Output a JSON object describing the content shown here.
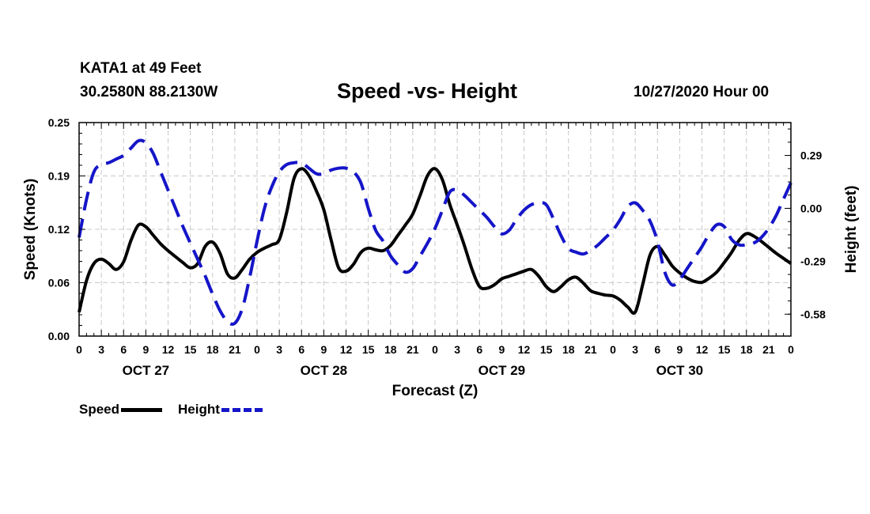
{
  "header": {
    "station": "KATA1 at 49 Feet",
    "coords": "30.2580N 88.2130W",
    "title": "Speed -vs- Height",
    "datetime": "10/27/2020 Hour 00"
  },
  "legend": {
    "speed_label": "Speed",
    "height_label": "Height"
  },
  "colors": {
    "speed": "#000000",
    "height": "#1515c8",
    "grid": "#c8c8c8"
  },
  "chart_data": {
    "type": "line",
    "title": "Speed -vs- Height",
    "xlabel": "Forecast (Z)",
    "ylabel": "Speed (Knots)",
    "y2label": "Height (feet)",
    "xlim": [
      0,
      96
    ],
    "ylim": [
      0,
      0.25
    ],
    "y2lim": [
      -0.7,
      0.47
    ],
    "yticks": [
      {
        "value": 0,
        "label": "0.00"
      },
      {
        "value": 0.0625,
        "label": "0.06"
      },
      {
        "value": 0.125,
        "label": "0.12"
      },
      {
        "value": 0.1875,
        "label": "0.19"
      },
      {
        "value": 0.25,
        "label": "0.25"
      }
    ],
    "y2ticks": [
      {
        "value": -0.58,
        "label": "-0.58"
      },
      {
        "value": -0.29,
        "label": "-0.29"
      },
      {
        "value": 0,
        "label": "0.00"
      },
      {
        "value": 0.29,
        "label": "0.29"
      }
    ],
    "xticks": [
      {
        "value": 0,
        "label": "0"
      },
      {
        "value": 3,
        "label": "3"
      },
      {
        "value": 6,
        "label": "6"
      },
      {
        "value": 9,
        "label": "9"
      },
      {
        "value": 12,
        "label": "12"
      },
      {
        "value": 15,
        "label": "15"
      },
      {
        "value": 18,
        "label": "18"
      },
      {
        "value": 21,
        "label": "21"
      },
      {
        "value": 24,
        "label": "0"
      },
      {
        "value": 27,
        "label": "3"
      },
      {
        "value": 30,
        "label": "6"
      },
      {
        "value": 33,
        "label": "9"
      },
      {
        "value": 36,
        "label": "12"
      },
      {
        "value": 39,
        "label": "15"
      },
      {
        "value": 42,
        "label": "18"
      },
      {
        "value": 45,
        "label": "21"
      },
      {
        "value": 48,
        "label": "0"
      },
      {
        "value": 51,
        "label": "3"
      },
      {
        "value": 54,
        "label": "6"
      },
      {
        "value": 57,
        "label": "9"
      },
      {
        "value": 60,
        "label": "12"
      },
      {
        "value": 63,
        "label": "15"
      },
      {
        "value": 66,
        "label": "18"
      },
      {
        "value": 69,
        "label": "21"
      },
      {
        "value": 72,
        "label": "0"
      },
      {
        "value": 75,
        "label": "3"
      },
      {
        "value": 78,
        "label": "6"
      },
      {
        "value": 81,
        "label": "9"
      },
      {
        "value": 84,
        "label": "12"
      },
      {
        "value": 87,
        "label": "15"
      },
      {
        "value": 90,
        "label": "18"
      },
      {
        "value": 93,
        "label": "21"
      },
      {
        "value": 96,
        "label": "0"
      }
    ],
    "day_labels": [
      {
        "value": 9,
        "label": "OCT 27"
      },
      {
        "value": 33,
        "label": "OCT 28"
      },
      {
        "value": 57,
        "label": "OCT 29"
      },
      {
        "value": 81,
        "label": "OCT 30"
      }
    ],
    "series": [
      {
        "name": "Speed",
        "axis": "left",
        "style": "solid",
        "x": [
          0,
          1,
          2,
          3,
          4,
          5,
          6,
          7,
          8,
          9,
          10,
          11,
          12,
          13,
          14,
          15,
          16,
          17,
          18,
          19,
          20,
          21,
          22,
          23,
          24,
          25,
          26,
          27,
          28,
          29,
          30,
          31,
          32,
          33,
          34,
          35,
          36,
          37,
          38,
          39,
          40,
          41,
          42,
          43,
          44,
          45,
          46,
          47,
          48,
          49,
          50,
          51,
          52,
          53,
          54,
          55,
          56,
          57,
          58,
          59,
          60,
          61,
          62,
          63,
          64,
          65,
          66,
          67,
          68,
          69,
          70,
          71,
          72,
          73,
          74,
          75,
          76,
          77,
          78,
          79,
          80,
          81,
          82,
          83,
          84,
          85,
          86,
          87,
          88,
          89,
          90,
          91,
          92,
          93,
          94,
          95,
          96
        ],
        "values": [
          0.028,
          0.065,
          0.085,
          0.09,
          0.085,
          0.078,
          0.087,
          0.112,
          0.13,
          0.128,
          0.118,
          0.108,
          0.1,
          0.093,
          0.086,
          0.08,
          0.085,
          0.105,
          0.11,
          0.097,
          0.073,
          0.068,
          0.078,
          0.09,
          0.098,
          0.103,
          0.107,
          0.113,
          0.145,
          0.185,
          0.196,
          0.188,
          0.17,
          0.148,
          0.112,
          0.08,
          0.076,
          0.084,
          0.098,
          0.103,
          0.101,
          0.1,
          0.106,
          0.118,
          0.13,
          0.143,
          0.165,
          0.188,
          0.196,
          0.183,
          0.154,
          0.13,
          0.105,
          0.078,
          0.058,
          0.056,
          0.06,
          0.067,
          0.07,
          0.073,
          0.076,
          0.078,
          0.07,
          0.058,
          0.052,
          0.058,
          0.066,
          0.069,
          0.062,
          0.053,
          0.05,
          0.048,
          0.047,
          0.042,
          0.034,
          0.028,
          0.06,
          0.095,
          0.105,
          0.095,
          0.082,
          0.074,
          0.068,
          0.064,
          0.063,
          0.068,
          0.075,
          0.086,
          0.098,
          0.112,
          0.12,
          0.117,
          0.111,
          0.104,
          0.097,
          0.091,
          0.085
        ]
      },
      {
        "name": "Height",
        "axis": "right",
        "style": "dashed",
        "x": [
          0,
          1,
          2,
          3,
          4,
          5,
          6,
          7,
          8,
          9,
          10,
          11,
          12,
          13,
          14,
          15,
          16,
          17,
          18,
          19,
          20,
          21,
          22,
          23,
          24,
          25,
          26,
          27,
          28,
          29,
          30,
          31,
          32,
          33,
          34,
          35,
          36,
          37,
          38,
          39,
          40,
          41,
          42,
          43,
          44,
          45,
          46,
          47,
          48,
          49,
          50,
          51,
          52,
          53,
          54,
          55,
          56,
          57,
          58,
          59,
          60,
          61,
          62,
          63,
          64,
          65,
          66,
          67,
          68,
          69,
          70,
          71,
          72,
          73,
          74,
          75,
          76,
          77,
          78,
          79,
          80,
          81,
          82,
          83,
          84,
          85,
          86,
          87,
          88,
          89,
          90,
          91,
          92,
          93,
          94,
          95,
          96
        ],
        "values": [
          -0.16,
          0.05,
          0.2,
          0.24,
          0.25,
          0.27,
          0.29,
          0.33,
          0.37,
          0.36,
          0.3,
          0.2,
          0.1,
          0.0,
          -0.1,
          -0.19,
          -0.28,
          -0.37,
          -0.47,
          -0.56,
          -0.62,
          -0.63,
          -0.55,
          -0.38,
          -0.18,
          0.0,
          0.12,
          0.2,
          0.24,
          0.25,
          0.25,
          0.22,
          0.19,
          0.19,
          0.21,
          0.22,
          0.22,
          0.2,
          0.14,
          0.0,
          -0.12,
          -0.18,
          -0.26,
          -0.31,
          -0.35,
          -0.33,
          -0.26,
          -0.19,
          -0.11,
          -0.01,
          0.09,
          0.1,
          0.07,
          0.03,
          -0.01,
          -0.05,
          -0.1,
          -0.14,
          -0.12,
          -0.06,
          -0.01,
          0.02,
          0.03,
          0.02,
          -0.06,
          -0.15,
          -0.22,
          -0.24,
          -0.25,
          -0.23,
          -0.2,
          -0.16,
          -0.12,
          -0.06,
          0.01,
          0.03,
          -0.01,
          -0.07,
          -0.18,
          -0.35,
          -0.42,
          -0.39,
          -0.33,
          -0.27,
          -0.21,
          -0.14,
          -0.09,
          -0.1,
          -0.17,
          -0.2,
          -0.2,
          -0.19,
          -0.16,
          -0.11,
          -0.04,
          0.05,
          0.14
        ]
      }
    ]
  }
}
